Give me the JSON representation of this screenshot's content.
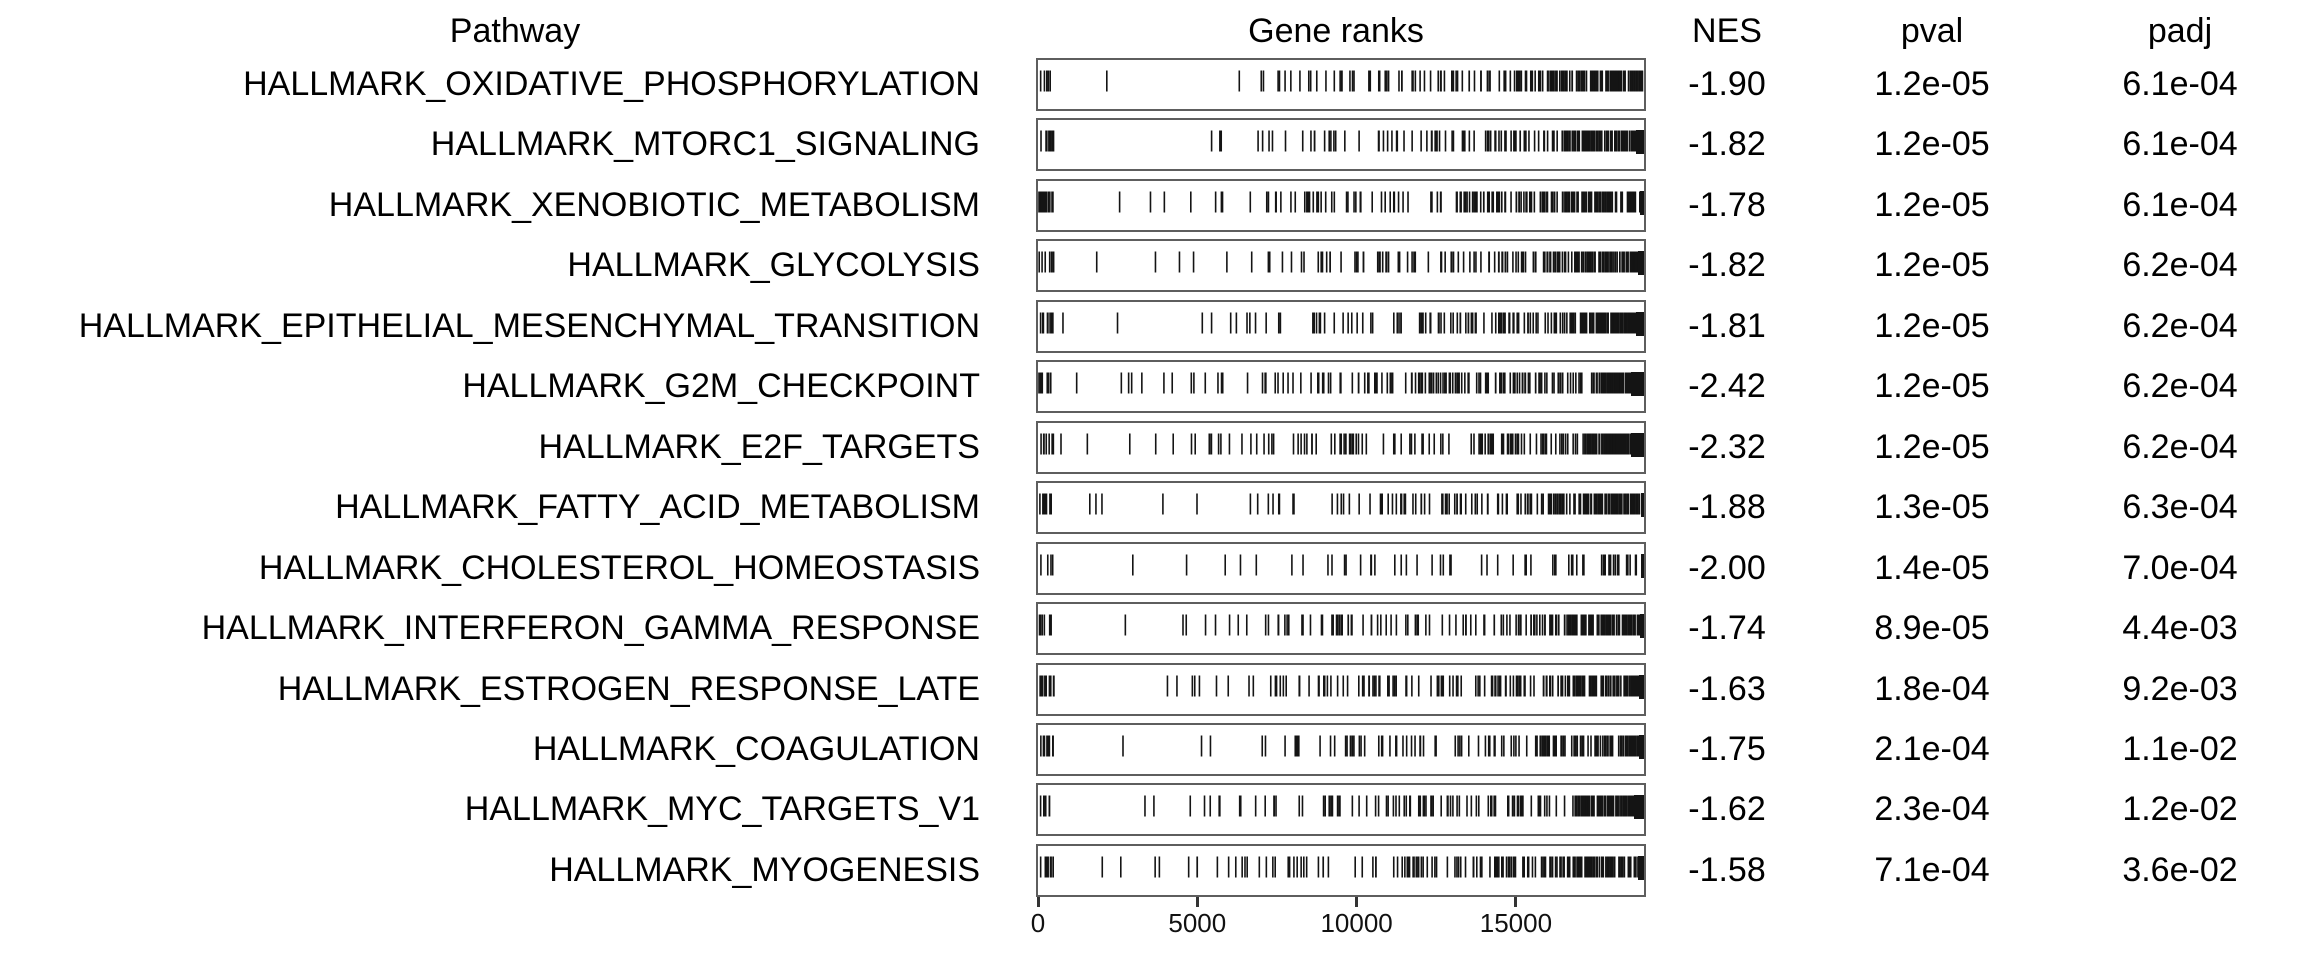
{
  "colors": {
    "text": "#000000",
    "panel_border": "#5e5e5e",
    "rank_tick": "#141414",
    "axis_tick": "#333333"
  },
  "chart_data": {
    "type": "table",
    "title": "fgsea enrichment results table (Hallmark gene sets)",
    "columns": [
      "Pathway",
      "Gene ranks",
      "NES",
      "pval",
      "padj"
    ],
    "x_axis": {
      "label": "",
      "ticks": [
        0,
        5000,
        10000,
        15000
      ],
      "tick_labels": [
        "0",
        "5000",
        "10000",
        "15000"
      ],
      "range": [
        0,
        19050
      ],
      "grid": false
    },
    "rows": [
      {
        "pathway": "HALLMARK_OXIDATIVE_PHOSPHORYLATION",
        "nes": "-1.90",
        "pval": "1.2e-05",
        "padj": "6.1e-04",
        "rank_ticks": {
          "seed": 101,
          "n": 140,
          "skew": 3.2,
          "left_cluster": 5,
          "right_extra": 50,
          "right_start": 0.78,
          "edge_block": 0
        }
      },
      {
        "pathway": "HALLMARK_MTORC1_SIGNALING",
        "nes": "-1.82",
        "pval": "1.2e-05",
        "padj": "6.1e-04",
        "rank_ticks": {
          "seed": 102,
          "n": 120,
          "skew": 3.0,
          "left_cluster": 16,
          "right_extra": 60,
          "right_start": 0.82,
          "edge_block": 8
        }
      },
      {
        "pathway": "HALLMARK_XENOBIOTIC_METABOLISM",
        "nes": "-1.78",
        "pval": "1.2e-05",
        "padj": "6.1e-04",
        "rank_ticks": {
          "seed": 103,
          "n": 150,
          "skew": 2.6,
          "left_cluster": 18,
          "right_extra": 40,
          "right_start": 0.78,
          "edge_block": 4
        }
      },
      {
        "pathway": "HALLMARK_GLYCOLYSIS",
        "nes": "-1.82",
        "pval": "1.2e-05",
        "padj": "6.2e-04",
        "rank_ticks": {
          "seed": 104,
          "n": 120,
          "skew": 3.0,
          "left_cluster": 7,
          "right_extra": 55,
          "right_start": 0.82,
          "edge_block": 6
        }
      },
      {
        "pathway": "HALLMARK_EPITHELIAL_MESENCHYMAL_TRANSITION",
        "nes": "-1.81",
        "pval": "1.2e-05",
        "padj": "6.2e-04",
        "rank_ticks": {
          "seed": 105,
          "n": 130,
          "skew": 3.0,
          "left_cluster": 10,
          "right_extra": 65,
          "right_start": 0.84,
          "edge_block": 8
        }
      },
      {
        "pathway": "HALLMARK_G2M_CHECKPOINT",
        "nes": "-2.42",
        "pval": "1.2e-05",
        "padj": "6.2e-04",
        "rank_ticks": {
          "seed": 106,
          "n": 160,
          "skew": 2.3,
          "left_cluster": 9,
          "right_extra": 90,
          "right_start": 0.9,
          "edge_block": 13
        }
      },
      {
        "pathway": "HALLMARK_E2F_TARGETS",
        "nes": "-2.32",
        "pval": "1.2e-05",
        "padj": "6.2e-04",
        "rank_ticks": {
          "seed": 107,
          "n": 150,
          "skew": 2.3,
          "left_cluster": 8,
          "right_extra": 90,
          "right_start": 0.9,
          "edge_block": 13
        }
      },
      {
        "pathway": "HALLMARK_FATTY_ACID_METABOLISM",
        "nes": "-1.88",
        "pval": "1.3e-05",
        "padj": "6.3e-04",
        "rank_ticks": {
          "seed": 108,
          "n": 120,
          "skew": 2.8,
          "left_cluster": 9,
          "right_extra": 45,
          "right_start": 0.8,
          "edge_block": 3
        }
      },
      {
        "pathway": "HALLMARK_CHOLESTEROL_HOMEOSTASIS",
        "nes": "-2.00",
        "pval": "1.4e-05",
        "padj": "7.0e-04",
        "rank_ticks": {
          "seed": 109,
          "n": 45,
          "skew": 2.2,
          "left_cluster": 4,
          "right_extra": 14,
          "right_start": 0.88,
          "edge_block": 3
        }
      },
      {
        "pathway": "HALLMARK_INTERFERON_GAMMA_RESPONSE",
        "nes": "-1.74",
        "pval": "8.9e-05",
        "padj": "4.4e-03",
        "rank_ticks": {
          "seed": 110,
          "n": 140,
          "skew": 2.6,
          "left_cluster": 9,
          "right_extra": 45,
          "right_start": 0.82,
          "edge_block": 4
        }
      },
      {
        "pathway": "HALLMARK_ESTROGEN_RESPONSE_LATE",
        "nes": "-1.63",
        "pval": "1.8e-04",
        "padj": "9.2e-03",
        "rank_ticks": {
          "seed": 111,
          "n": 140,
          "skew": 2.6,
          "left_cluster": 12,
          "right_extra": 45,
          "right_start": 0.82,
          "edge_block": 5
        }
      },
      {
        "pathway": "HALLMARK_COAGULATION",
        "nes": "-1.75",
        "pval": "2.1e-04",
        "padj": "1.1e-02",
        "rank_ticks": {
          "seed": 112,
          "n": 95,
          "skew": 2.6,
          "left_cluster": 10,
          "right_extra": 40,
          "right_start": 0.84,
          "edge_block": 5
        }
      },
      {
        "pathway": "HALLMARK_MYC_TARGETS_V1",
        "nes": "-1.62",
        "pval": "2.3e-04",
        "padj": "1.2e-02",
        "rank_ticks": {
          "seed": 113,
          "n": 130,
          "skew": 2.5,
          "left_cluster": 6,
          "right_extra": 75,
          "right_start": 0.88,
          "edge_block": 10
        }
      },
      {
        "pathway": "HALLMARK_MYOGENESIS",
        "nes": "-1.58",
        "pval": "7.1e-04",
        "padj": "3.6e-02",
        "rank_ticks": {
          "seed": 114,
          "n": 130,
          "skew": 2.4,
          "left_cluster": 14,
          "right_extra": 50,
          "right_start": 0.84,
          "edge_block": 6
        }
      }
    ]
  }
}
